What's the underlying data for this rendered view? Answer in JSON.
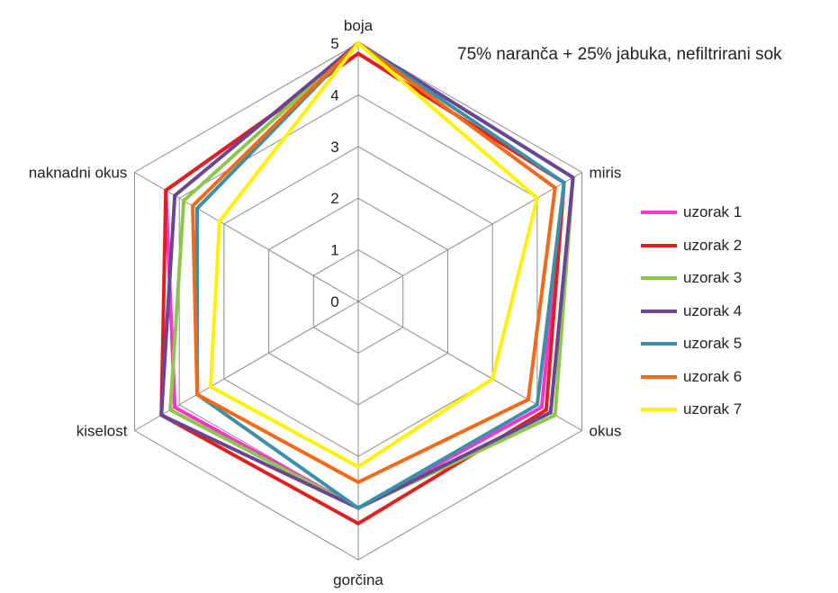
{
  "chart_data": {
    "type": "radar",
    "title": "75% naranča + 25% jabuka, nefiltrirani sok",
    "axes": [
      "boja",
      "miris",
      "okus",
      "gorčina",
      "kiselost",
      "naknadni okus"
    ],
    "rlim": [
      0,
      5
    ],
    "ticks": [
      0,
      1,
      2,
      3,
      4,
      5
    ],
    "grid": true,
    "legend_position": "right",
    "series": [
      {
        "name": "uzorak 1",
        "color": "#FF33CC",
        "values": [
          4.8,
          4.6,
          4.1,
          4.0,
          4.1,
          4.3
        ]
      },
      {
        "name": "uzorak 2",
        "color": "#E0201F",
        "values": [
          4.8,
          4.6,
          4.2,
          4.3,
          4.4,
          4.3
        ]
      },
      {
        "name": "uzorak 3",
        "color": "#8CC64B",
        "values": [
          5.0,
          4.8,
          4.4,
          4.0,
          4.2,
          3.9
        ]
      },
      {
        "name": "uzorak 4",
        "color": "#6A4594",
        "values": [
          5.0,
          4.8,
          4.3,
          4.0,
          4.4,
          4.1
        ]
      },
      {
        "name": "uzorak 5",
        "color": "#3A90A8",
        "values": [
          5.0,
          4.6,
          4.0,
          4.0,
          3.6,
          3.6
        ]
      },
      {
        "name": "uzorak 6",
        "color": "#F26A17",
        "values": [
          5.0,
          4.4,
          3.8,
          3.5,
          3.6,
          3.7
        ]
      },
      {
        "name": "uzorak 7",
        "color": "#FFF200",
        "values": [
          5.0,
          4.0,
          3.0,
          3.2,
          3.3,
          3.1
        ]
      }
    ]
  }
}
